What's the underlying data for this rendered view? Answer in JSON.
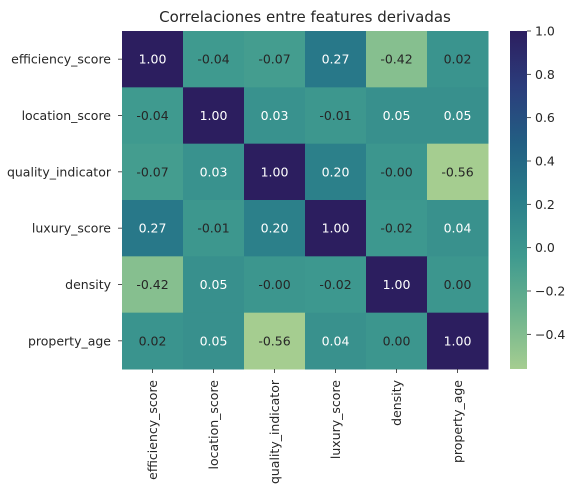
{
  "chart_data": {
    "type": "heatmap",
    "title": "Correlaciones entre features derivadas",
    "xlabel": "",
    "ylabel": "",
    "rows": [
      "efficiency_score",
      "location_score",
      "quality_indicator",
      "luxury_score",
      "density",
      "property_age"
    ],
    "columns": [
      "efficiency_score",
      "location_score",
      "quality_indicator",
      "luxury_score",
      "density",
      "property_age"
    ],
    "values": [
      [
        1.0,
        -0.04,
        -0.07,
        0.27,
        -0.42,
        0.02
      ],
      [
        -0.04,
        1.0,
        0.03,
        -0.01,
        0.05,
        0.05
      ],
      [
        -0.07,
        0.03,
        1.0,
        0.2,
        -0.0,
        -0.56
      ],
      [
        0.27,
        -0.01,
        0.2,
        1.0,
        -0.02,
        0.04
      ],
      [
        -0.42,
        0.05,
        -0.0,
        -0.02,
        1.0,
        0.0
      ],
      [
        0.02,
        0.05,
        -0.56,
        0.04,
        0.0,
        1.0
      ]
    ],
    "cell_labels": [
      [
        "1.00",
        "-0.04",
        "-0.07",
        "0.27",
        "-0.42",
        "0.02"
      ],
      [
        "-0.04",
        "1.00",
        "0.03",
        "-0.01",
        "0.05",
        "0.05"
      ],
      [
        "-0.07",
        "0.03",
        "1.00",
        "0.20",
        "-0.00",
        "-0.56"
      ],
      [
        "0.27",
        "-0.01",
        "0.20",
        "1.00",
        "-0.02",
        "0.04"
      ],
      [
        "-0.42",
        "0.05",
        "-0.00",
        "-0.02",
        "1.00",
        "0.00"
      ],
      [
        "0.02",
        "0.05",
        "-0.56",
        "0.04",
        "0.00",
        "1.00"
      ]
    ],
    "colorbar": {
      "min": -0.56,
      "max": 1.0,
      "ticks": [
        1.0,
        0.8,
        0.6,
        0.4,
        0.2,
        0.0,
        -0.2,
        -0.4
      ],
      "tick_labels": [
        "1.0",
        "0.8",
        "0.6",
        "0.4",
        "0.2",
        "0.0",
        "−0.2",
        "−0.4"
      ]
    },
    "colormap": "crest",
    "colormap_stops": [
      "#a5cd90",
      "#6cb38e",
      "#3f9a8f",
      "#2a7e8a",
      "#225f83",
      "#2b3d7c",
      "#2c1e5f"
    ],
    "annotation_text_colors": {
      "light_cell": "#262626",
      "dark_cell": "#ffffff"
    }
  }
}
